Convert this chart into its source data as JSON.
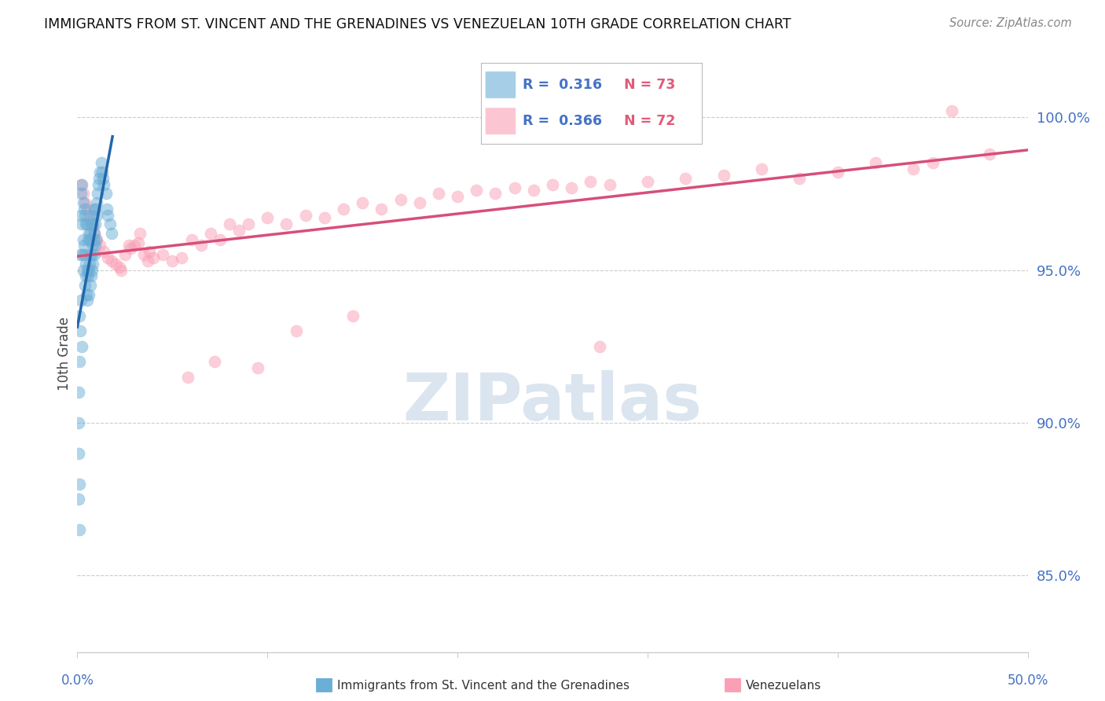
{
  "title": "IMMIGRANTS FROM ST. VINCENT AND THE GRENADINES VS VENEZUELAN 10TH GRADE CORRELATION CHART",
  "source": "Source: ZipAtlas.com",
  "ylabel": "10th Grade",
  "y_ticks": [
    85.0,
    90.0,
    95.0,
    100.0
  ],
  "x_min": 0.0,
  "x_max": 50.0,
  "y_min": 82.5,
  "y_max": 102.0,
  "legend_blue_r": "0.316",
  "legend_blue_n": "73",
  "legend_pink_r": "0.366",
  "legend_pink_n": "72",
  "blue_color": "#6baed6",
  "pink_color": "#fa9fb5",
  "blue_line_color": "#2166ac",
  "pink_line_color": "#d64f7a",
  "watermark_text": "ZIPatlas",
  "watermark_color": "#c8d8e8",
  "background_color": "#ffffff",
  "grid_color": "#cccccc",
  "blue_scatter_x": [
    0.05,
    0.08,
    0.1,
    0.12,
    0.15,
    0.15,
    0.18,
    0.2,
    0.2,
    0.22,
    0.25,
    0.25,
    0.28,
    0.3,
    0.3,
    0.32,
    0.35,
    0.35,
    0.38,
    0.4,
    0.4,
    0.42,
    0.45,
    0.45,
    0.48,
    0.5,
    0.5,
    0.52,
    0.55,
    0.55,
    0.6,
    0.6,
    0.62,
    0.65,
    0.65,
    0.68,
    0.7,
    0.7,
    0.72,
    0.75,
    0.75,
    0.78,
    0.8,
    0.8,
    0.82,
    0.85,
    0.85,
    0.88,
    0.9,
    0.9,
    0.92,
    0.95,
    0.95,
    0.98,
    1.0,
    1.0,
    1.05,
    1.1,
    1.15,
    1.2,
    1.25,
    1.3,
    1.35,
    1.4,
    1.5,
    1.55,
    1.6,
    1.7,
    1.8,
    0.05,
    0.07,
    0.09,
    0.11
  ],
  "blue_scatter_y": [
    89.0,
    87.5,
    86.5,
    88.0,
    93.0,
    95.5,
    97.5,
    96.8,
    94.0,
    92.5,
    97.8,
    96.5,
    95.5,
    97.2,
    96.0,
    95.0,
    97.0,
    95.8,
    94.5,
    96.8,
    95.5,
    94.8,
    96.5,
    95.2,
    94.2,
    96.5,
    95.0,
    94.0,
    96.0,
    94.8,
    96.2,
    95.0,
    94.2,
    96.0,
    95.2,
    94.5,
    96.2,
    95.5,
    94.8,
    96.5,
    95.5,
    95.0,
    96.5,
    95.8,
    95.2,
    96.8,
    96.0,
    95.5,
    97.0,
    96.2,
    95.8,
    97.0,
    96.5,
    96.0,
    97.2,
    96.8,
    97.5,
    97.8,
    98.0,
    98.2,
    98.5,
    98.2,
    98.0,
    97.8,
    97.5,
    97.0,
    96.8,
    96.5,
    96.2,
    91.0,
    90.0,
    93.5,
    92.0
  ],
  "pink_scatter_x": [
    0.3,
    0.4,
    0.5,
    0.6,
    0.7,
    0.8,
    0.9,
    1.0,
    1.2,
    1.4,
    1.6,
    1.8,
    2.0,
    2.2,
    2.5,
    2.8,
    3.0,
    3.2,
    3.5,
    3.8,
    4.0,
    4.5,
    5.0,
    5.5,
    6.0,
    6.5,
    7.0,
    7.5,
    8.0,
    8.5,
    9.0,
    10.0,
    11.0,
    12.0,
    13.0,
    14.0,
    15.0,
    16.0,
    17.0,
    18.0,
    19.0,
    20.0,
    21.0,
    22.0,
    23.0,
    24.0,
    25.0,
    26.0,
    27.0,
    28.0,
    30.0,
    32.0,
    34.0,
    36.0,
    38.0,
    40.0,
    42.0,
    44.0,
    45.0,
    48.0,
    2.3,
    2.7,
    3.3,
    3.7,
    0.2,
    5.8,
    7.2,
    9.5,
    11.5,
    14.5,
    27.5,
    46.0
  ],
  "pink_scatter_y": [
    97.5,
    97.2,
    97.0,
    96.8,
    96.6,
    96.4,
    96.2,
    96.0,
    95.8,
    95.6,
    95.4,
    95.3,
    95.2,
    95.1,
    95.5,
    95.7,
    95.8,
    95.9,
    95.5,
    95.6,
    95.4,
    95.5,
    95.3,
    95.4,
    96.0,
    95.8,
    96.2,
    96.0,
    96.5,
    96.3,
    96.5,
    96.7,
    96.5,
    96.8,
    96.7,
    97.0,
    97.2,
    97.0,
    97.3,
    97.2,
    97.5,
    97.4,
    97.6,
    97.5,
    97.7,
    97.6,
    97.8,
    97.7,
    97.9,
    97.8,
    97.9,
    98.0,
    98.1,
    98.3,
    98.0,
    98.2,
    98.5,
    98.3,
    98.5,
    98.8,
    95.0,
    95.8,
    96.2,
    95.3,
    97.8,
    91.5,
    92.0,
    91.8,
    93.0,
    93.5,
    92.5,
    100.2
  ]
}
